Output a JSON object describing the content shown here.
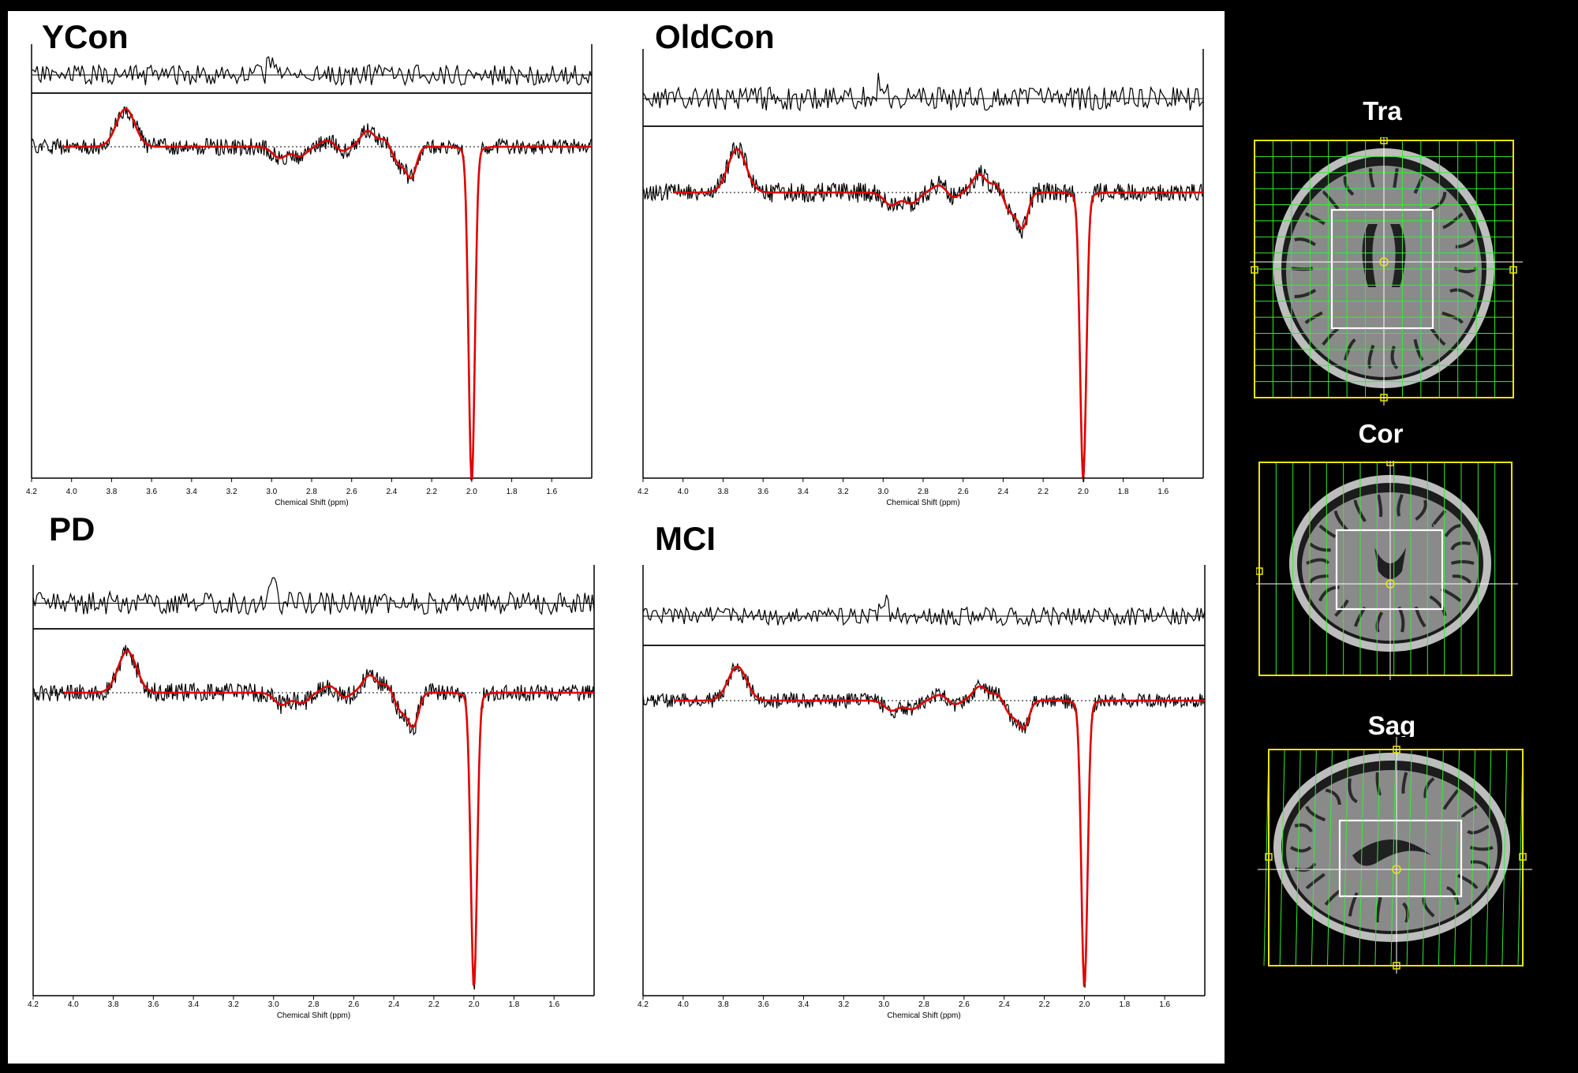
{
  "panels": [
    {
      "id": "ycon",
      "title": "YCon",
      "xlabel": "Chemical Shift (ppm)",
      "ticks": [
        "4.2",
        "4.0",
        "3.8",
        "3.6",
        "3.4",
        "3.2",
        "3.0",
        "2.8",
        "2.6",
        "2.4",
        "2.2",
        "2.0",
        "1.8",
        "1.6"
      ]
    },
    {
      "id": "oldcon",
      "title": "OldCon",
      "xlabel": "Chemical Shift (ppm)",
      "ticks": [
        "4.2",
        "4.0",
        "3.8",
        "3.6",
        "3.4",
        "3.2",
        "3.0",
        "2.8",
        "2.6",
        "2.4",
        "2.2",
        "2.0",
        "1.8",
        "1.6"
      ]
    },
    {
      "id": "pd",
      "title": "PD",
      "xlabel": "Chemical Shift (ppm)",
      "ticks": [
        "4.2",
        "4.0",
        "3.8",
        "3.6",
        "3.4",
        "3.2",
        "3.0",
        "2.8",
        "2.6",
        "2.4",
        "2.2",
        "2.0",
        "1.8",
        "1.6"
      ]
    },
    {
      "id": "mci",
      "title": "MCI",
      "xlabel": "Chemical Shift (ppm)",
      "ticks": [
        "4.2",
        "4.0",
        "3.8",
        "3.6",
        "3.4",
        "3.2",
        "3.0",
        "2.8",
        "2.6",
        "2.4",
        "2.2",
        "2.0",
        "1.8",
        "1.6"
      ]
    }
  ],
  "mri_views": [
    {
      "id": "tra",
      "label": "Tra"
    },
    {
      "id": "cor",
      "label": "Cor"
    },
    {
      "id": "sag",
      "label": "Sag"
    }
  ],
  "colors": {
    "fit": "#e00000",
    "data": "#000000",
    "grid": "#33ee33",
    "frame": "#e8e800",
    "voxel": "#ffffff"
  }
}
